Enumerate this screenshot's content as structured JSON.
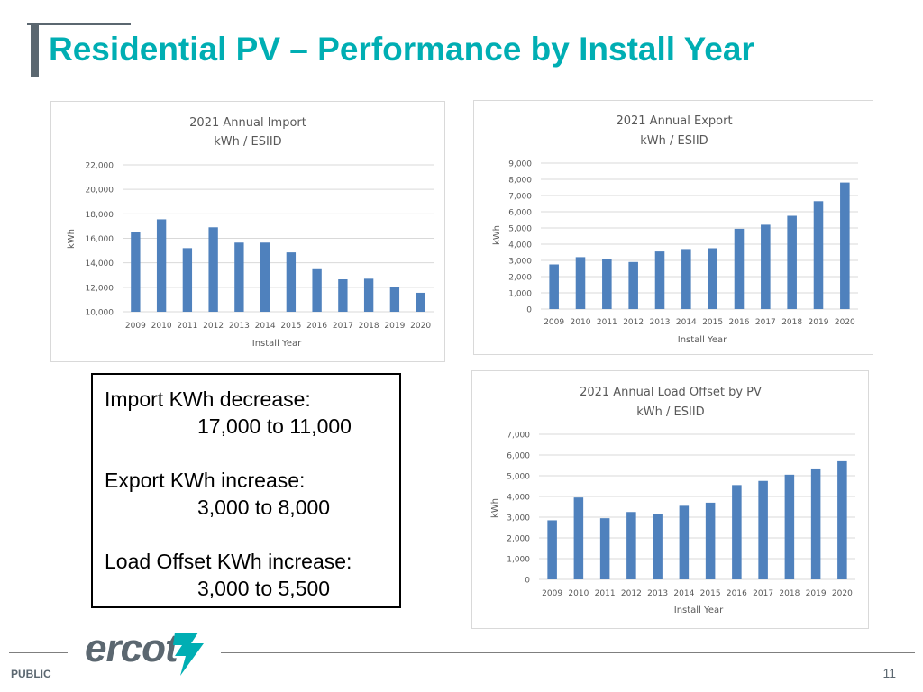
{
  "slide": {
    "title": "Residential PV – Performance by Install Year",
    "footer_label": "PUBLIC",
    "page_number": "11",
    "logo_text": "ercot",
    "colors": {
      "title": "#00aeb3",
      "bar": "#4f81bd",
      "accent_gray": "#5b6770"
    }
  },
  "notes": {
    "import_heading": "Import KWh decrease:",
    "import_range": "17,000 to 11,000",
    "export_heading": "Export KWh increase:",
    "export_range": "3,000 to 8,000",
    "offset_heading": "Load Offset KWh increase:",
    "offset_range": "3,000 to 5,500"
  },
  "chart_data": [
    {
      "type": "bar",
      "title": "2021 Annual Import",
      "subtitle": "kWh / ESIID",
      "xlabel": "Install Year",
      "ylabel": "kWh",
      "categories": [
        "2009",
        "2010",
        "2011",
        "2012",
        "2013",
        "2014",
        "2015",
        "2016",
        "2017",
        "2018",
        "2019",
        "2020"
      ],
      "values": [
        16500,
        17550,
        15200,
        16900,
        15650,
        15650,
        14850,
        13550,
        12650,
        12700,
        12050,
        11550
      ],
      "ylim": [
        10000,
        22000
      ],
      "yticks": [
        10000,
        12000,
        14000,
        16000,
        18000,
        20000,
        22000
      ],
      "ytick_labels": [
        "10,000",
        "12,000",
        "14,000",
        "16,000",
        "18,000",
        "20,000",
        "22,000"
      ],
      "grid": true,
      "legend": "none"
    },
    {
      "type": "bar",
      "title": "2021 Annual Export",
      "subtitle": "kWh / ESIID",
      "xlabel": "Install Year",
      "ylabel": "kWh",
      "categories": [
        "2009",
        "2010",
        "2011",
        "2012",
        "2013",
        "2014",
        "2015",
        "2016",
        "2017",
        "2018",
        "2019",
        "2020"
      ],
      "values": [
        2750,
        3200,
        3100,
        2900,
        3550,
        3700,
        3750,
        4950,
        5200,
        5750,
        6650,
        7800
      ],
      "ylim": [
        0,
        9000
      ],
      "yticks": [
        0,
        1000,
        2000,
        3000,
        4000,
        5000,
        6000,
        7000,
        8000,
        9000
      ],
      "ytick_labels": [
        "0",
        "1,000",
        "2,000",
        "3,000",
        "4,000",
        "5,000",
        "6,000",
        "7,000",
        "8,000",
        "9,000"
      ],
      "grid": true,
      "legend": "none"
    },
    {
      "type": "bar",
      "title": "2021 Annual Load Offset by PV",
      "subtitle": "kWh / ESIID",
      "xlabel": "Install Year",
      "ylabel": "kWh",
      "categories": [
        "2009",
        "2010",
        "2011",
        "2012",
        "2013",
        "2014",
        "2015",
        "2016",
        "2017",
        "2018",
        "2019",
        "2020"
      ],
      "values": [
        2850,
        3950,
        2950,
        3250,
        3150,
        3550,
        3700,
        4550,
        4750,
        5050,
        5350,
        5700
      ],
      "ylim": [
        0,
        7000
      ],
      "yticks": [
        0,
        1000,
        2000,
        3000,
        4000,
        5000,
        6000,
        7000
      ],
      "ytick_labels": [
        "0",
        "1,000",
        "2,000",
        "3,000",
        "4,000",
        "5,000",
        "6,000",
        "7,000"
      ],
      "grid": true,
      "legend": "none"
    }
  ]
}
